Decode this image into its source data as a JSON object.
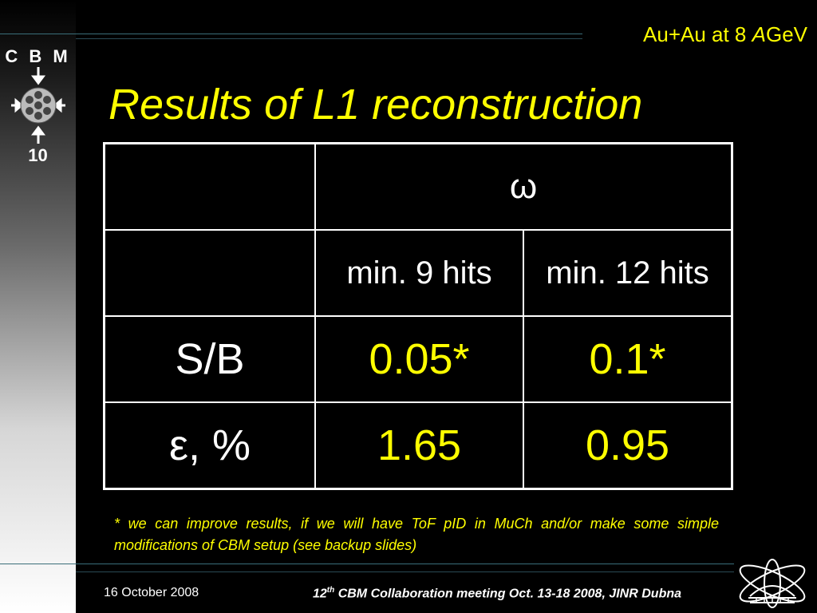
{
  "header": {
    "top_right_prefix": "Au+Au at 8 ",
    "top_right_italic": "A",
    "top_right_suffix": "GeV"
  },
  "logo": {
    "name": "C B M",
    "number": "10"
  },
  "slide": {
    "title": "Results of L1 reconstruction"
  },
  "table": {
    "header_symbol": "ω",
    "columns": [
      "min. 9 hits",
      "min. 12 hits"
    ],
    "rows": [
      {
        "label": "S/B",
        "values": [
          "0.05*",
          "0.1*"
        ]
      },
      {
        "label": "ε, %",
        "values": [
          "1.65",
          "0.95"
        ]
      }
    ]
  },
  "footnote": "* we can improve results, if we will have ToF pID in MuCh and/or make some simple modifications of CBM setup (see backup slides)",
  "footer": {
    "date": "16 October 2008",
    "meeting_prefix": "12",
    "meeting_sup": "th",
    "meeting_rest": " CBM  Collaboration meeting Oct. 13-18 2008, JINR Dubna"
  },
  "colors": {
    "accent": "#ffff00",
    "line": "#3a6e7a",
    "background": "#000000"
  },
  "icons": [
    "cbm-detector-logo-icon",
    "jinr-logo-icon"
  ]
}
